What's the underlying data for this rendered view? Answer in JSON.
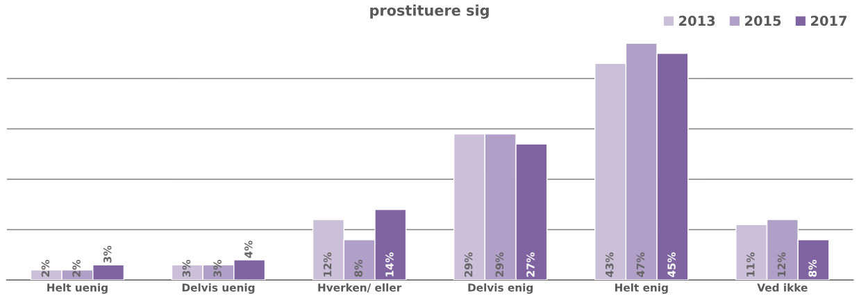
{
  "chart_data": {
    "type": "bar",
    "title": "prostituere sig",
    "categories": [
      "Helt uenig",
      "Delvis uenig",
      "Hverken/ eller",
      "Delvis enig",
      "Helt enig",
      "Ved ikke"
    ],
    "series": [
      {
        "name": "2013",
        "color": "#cbc0da",
        "values": [
          2,
          3,
          12,
          29,
          43,
          11
        ],
        "value_labels": [
          "2%",
          "3%",
          "12%",
          "29%",
          "43%",
          "11%"
        ]
      },
      {
        "name": "2015",
        "color": "#b0a0c8",
        "values": [
          2,
          3,
          8,
          29,
          47,
          12
        ],
        "value_labels": [
          "2%",
          "3%",
          "8%",
          "29%",
          "47%",
          "12%"
        ]
      },
      {
        "name": "2017",
        "color": "#8064a2",
        "values": [
          3,
          4,
          14,
          27,
          45,
          8
        ],
        "value_labels": [
          "3%",
          "4%",
          "14%",
          "27%",
          "45%",
          "8%"
        ]
      }
    ],
    "tick_labels": "x",
    "grid": "y",
    "legend": "top right"
  }
}
